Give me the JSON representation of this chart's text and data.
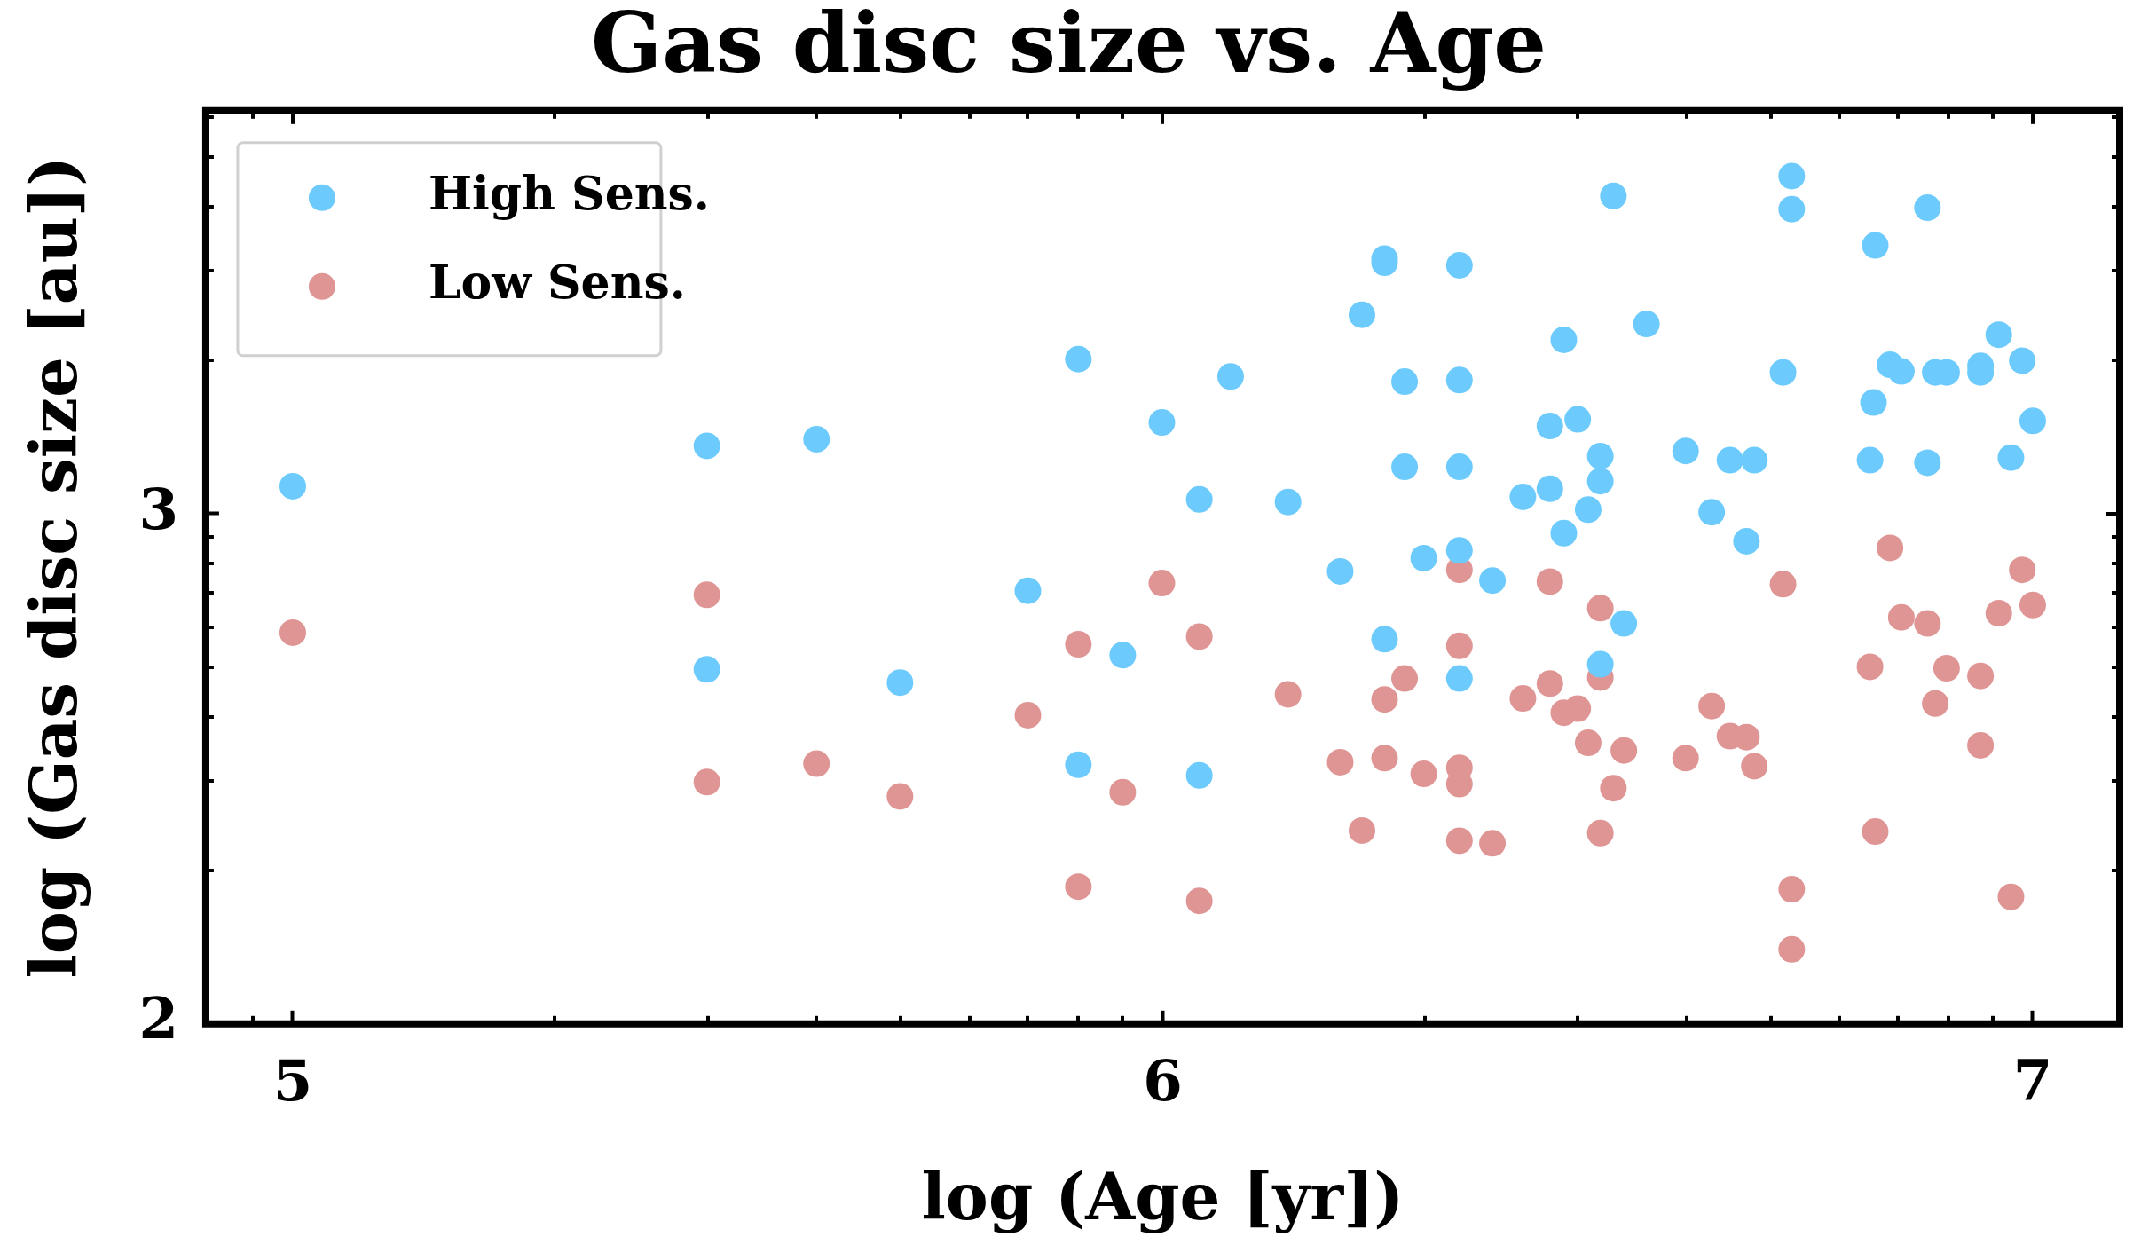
{
  "chart_data": {
    "type": "scatter",
    "title": "Gas disc size vs. Age",
    "xlabel": "log (Age [yr])",
    "ylabel": "log (Gas disc size [au])",
    "xlim": [
      4.9,
      7.1
    ],
    "ylim": [
      2,
      3.79
    ],
    "xticks": [
      {
        "value": 4.954,
        "label": null
      },
      {
        "value": 5,
        "label": "5"
      },
      {
        "value": 5.301,
        "label": null
      },
      {
        "value": 5.477,
        "label": null
      },
      {
        "value": 5.602,
        "label": null
      },
      {
        "value": 5.699,
        "label": null
      },
      {
        "value": 5.778,
        "label": null
      },
      {
        "value": 5.845,
        "label": null
      },
      {
        "value": 5.903,
        "label": null
      },
      {
        "value": 5.954,
        "label": null
      },
      {
        "value": 6,
        "label": "6"
      },
      {
        "value": 6.301,
        "label": null
      },
      {
        "value": 6.477,
        "label": null
      },
      {
        "value": 6.602,
        "label": null
      },
      {
        "value": 6.699,
        "label": null
      },
      {
        "value": 6.778,
        "label": null
      },
      {
        "value": 6.845,
        "label": null
      },
      {
        "value": 6.903,
        "label": null
      },
      {
        "value": 6.954,
        "label": null
      },
      {
        "value": 7,
        "label": "7"
      }
    ],
    "yticks": [
      {
        "value": 2,
        "label": "2"
      },
      {
        "value": 2.301,
        "label": null
      },
      {
        "value": 2.477,
        "label": null
      },
      {
        "value": 2.602,
        "label": null
      },
      {
        "value": 2.699,
        "label": null
      },
      {
        "value": 2.778,
        "label": null
      },
      {
        "value": 2.845,
        "label": null
      },
      {
        "value": 2.903,
        "label": null
      },
      {
        "value": 2.954,
        "label": null
      },
      {
        "value": 3,
        "label": "3"
      },
      {
        "value": 3.301,
        "label": null
      },
      {
        "value": 3.477,
        "label": null
      },
      {
        "value": 3.602,
        "label": null
      },
      {
        "value": 3.699,
        "label": null
      },
      {
        "value": 3.778,
        "label": null
      }
    ],
    "grid": false,
    "legend": "top left",
    "marker": "circle",
    "series": [
      {
        "name": "High Sens.",
        "color": "#6ccbfc",
        "x": [
          5.0,
          5.476,
          5.476,
          5.602,
          5.698,
          5.845,
          5.903,
          5.903,
          5.954,
          5.999,
          6.042,
          6.042,
          6.078,
          6.144,
          6.204,
          6.229,
          6.255,
          6.255,
          6.255,
          6.278,
          6.278,
          6.3,
          6.341,
          6.341,
          6.341,
          6.341,
          6.341,
          6.379,
          6.414,
          6.445,
          6.445,
          6.461,
          6.461,
          6.477,
          6.489,
          6.503,
          6.503,
          6.503,
          6.518,
          6.53,
          6.556,
          6.601,
          6.631,
          6.652,
          6.671,
          6.68,
          6.713,
          6.723,
          6.723,
          6.813,
          6.817,
          6.819,
          6.836,
          6.849,
          6.879,
          6.879,
          6.888,
          6.901,
          6.94,
          6.94,
          6.961,
          6.975,
          6.988,
          7.0
        ],
        "values": [
          3.054,
          3.133,
          2.695,
          3.146,
          2.669,
          2.849,
          3.303,
          2.508,
          2.723,
          3.179,
          3.028,
          2.487,
          3.269,
          3.023,
          2.887,
          3.39,
          3.5,
          3.492,
          2.754,
          3.259,
          3.092,
          2.913,
          3.487,
          3.262,
          3.092,
          2.928,
          2.677,
          2.869,
          3.033,
          3.049,
          3.172,
          2.962,
          3.341,
          3.185,
          3.008,
          3.113,
          3.064,
          2.705,
          3.623,
          2.785,
          3.372,
          3.123,
          3.003,
          3.105,
          2.946,
          3.105,
          3.277,
          3.662,
          3.597,
          3.105,
          3.218,
          3.526,
          3.292,
          3.279,
          3.6,
          3.1,
          3.277,
          3.277,
          3.29,
          3.277,
          3.351,
          3.11,
          3.3,
          3.182
        ]
      },
      {
        "name": "Low Sens.",
        "color": "#e09595",
        "x": [
          5.0,
          5.476,
          5.476,
          5.602,
          5.698,
          5.845,
          5.903,
          5.903,
          5.954,
          5.999,
          6.042,
          6.042,
          6.144,
          6.204,
          6.229,
          6.255,
          6.255,
          6.278,
          6.3,
          6.341,
          6.341,
          6.341,
          6.341,
          6.341,
          6.379,
          6.414,
          6.445,
          6.445,
          6.461,
          6.477,
          6.489,
          6.503,
          6.503,
          6.503,
          6.518,
          6.53,
          6.601,
          6.631,
          6.652,
          6.671,
          6.68,
          6.713,
          6.723,
          6.723,
          6.813,
          6.819,
          6.836,
          6.849,
          6.879,
          6.888,
          6.901,
          6.94,
          6.94,
          6.961,
          6.975,
          6.988,
          7.0
        ],
        "values": [
          2.767,
          2.841,
          2.474,
          2.51,
          2.446,
          2.605,
          2.744,
          2.269,
          2.454,
          2.864,
          2.759,
          2.241,
          2.646,
          2.513,
          2.379,
          2.636,
          2.521,
          2.677,
          2.49,
          2.89,
          2.741,
          2.502,
          2.47,
          2.359,
          2.354,
          2.638,
          2.867,
          2.667,
          2.61,
          2.618,
          2.551,
          2.815,
          2.679,
          2.374,
          2.462,
          2.536,
          2.521,
          2.623,
          2.564,
          2.562,
          2.505,
          2.862,
          2.264,
          2.146,
          2.7,
          2.377,
          2.933,
          2.797,
          2.785,
          2.628,
          2.697,
          2.682,
          2.546,
          2.805,
          2.249,
          2.89,
          2.821
        ]
      }
    ]
  }
}
